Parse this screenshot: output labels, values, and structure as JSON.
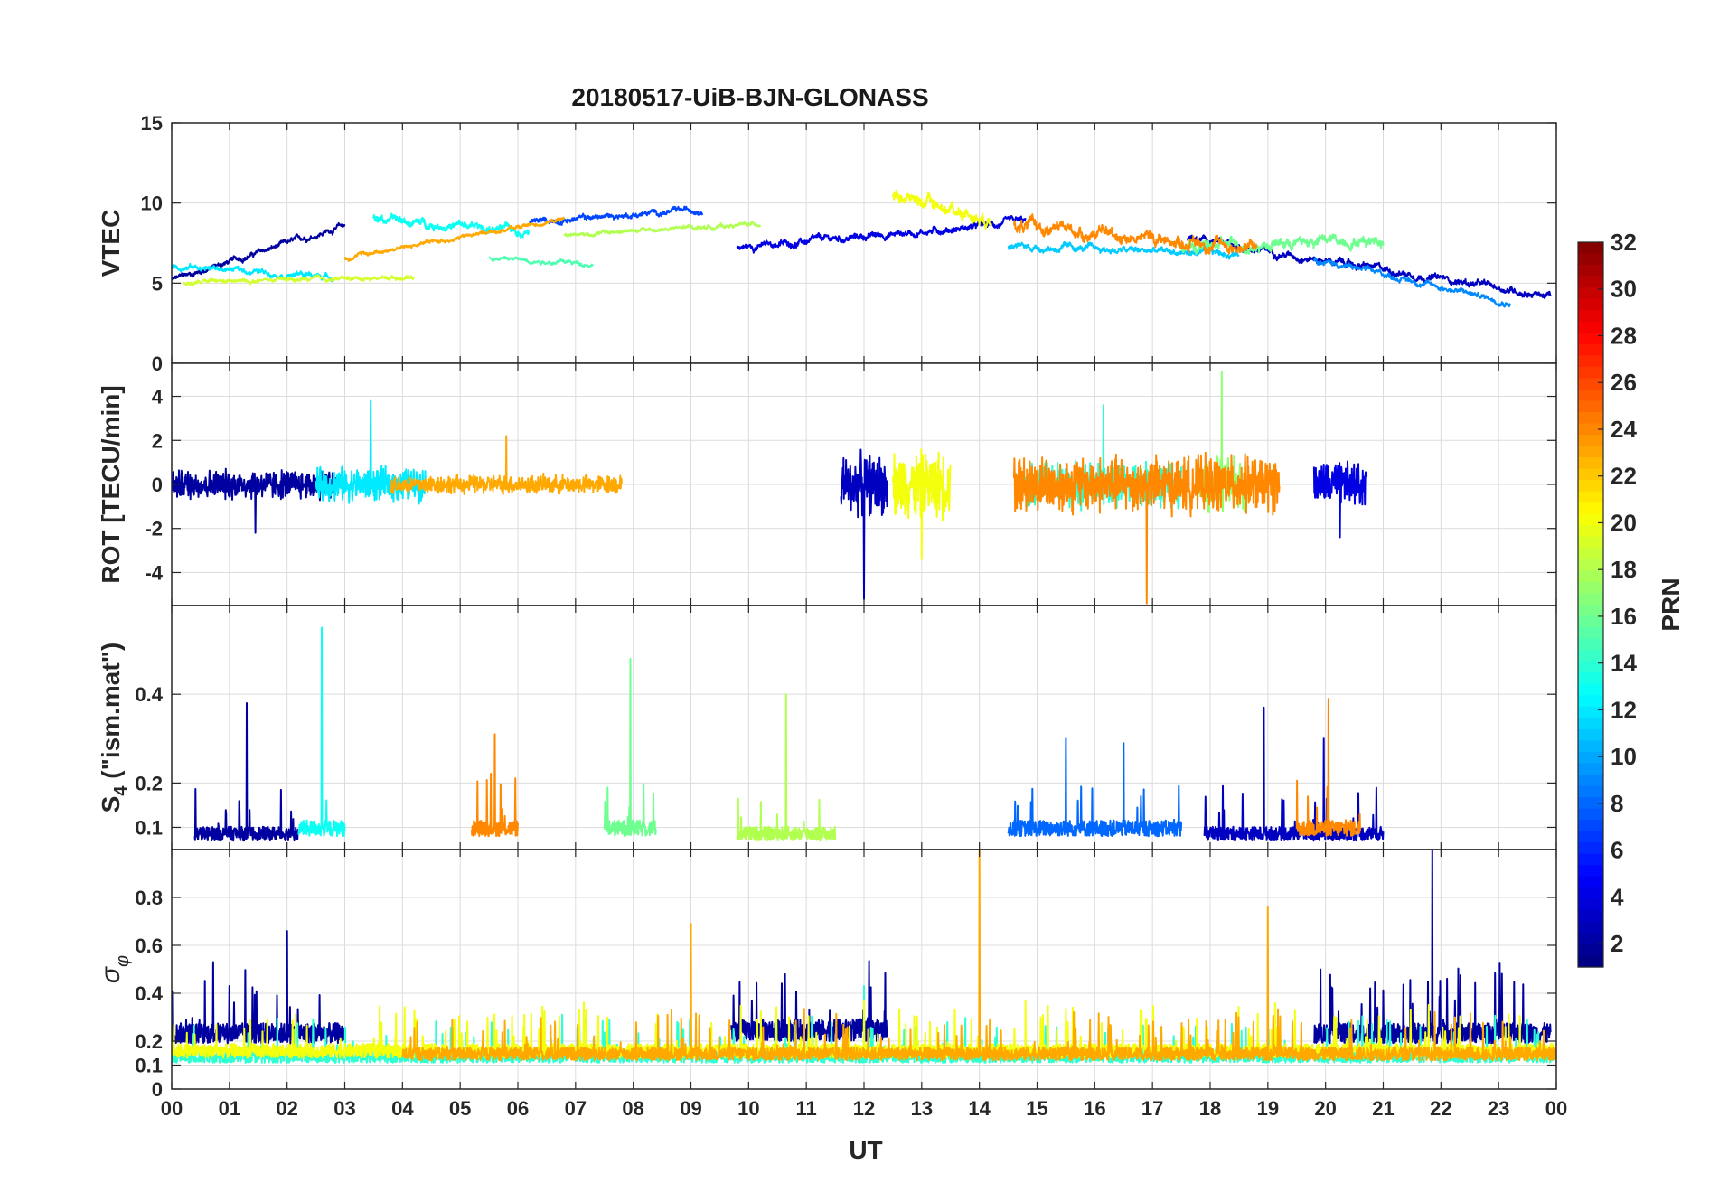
{
  "chart_data": {
    "type": "line",
    "title": "20180517-UiB-BJN-GLONASS",
    "xlabel": "UT",
    "x_ticks": [
      "00",
      "01",
      "02",
      "03",
      "04",
      "05",
      "06",
      "07",
      "08",
      "09",
      "10",
      "11",
      "12",
      "13",
      "14",
      "15",
      "16",
      "17",
      "18",
      "19",
      "20",
      "21",
      "22",
      "23",
      "00"
    ],
    "xlim": [
      0,
      24
    ],
    "grid": true,
    "panels": [
      {
        "name": "vtec",
        "ylabel": "VTEC",
        "ylim": [
          0,
          15
        ],
        "yticks": [
          0,
          5,
          10,
          15
        ],
        "ytick_labels": [
          "0",
          "5",
          "10",
          "15"
        ],
        "mode": "level",
        "series": [
          {
            "name": "PRN 2",
            "prn": 2,
            "hours": [
              0.0,
              3.0
            ],
            "values": [
              5.2,
              8.6
            ],
            "noise": 0.4
          },
          {
            "name": "PRN 4",
            "prn": 4,
            "hours": [
              9.8,
              14.8
            ],
            "values": [
              7.2,
              8.8
            ],
            "noise": 0.5
          },
          {
            "name": "PRN 3",
            "prn": 3,
            "hours": [
              17.6,
              23.9
            ],
            "values": [
              7.8,
              4.2
            ],
            "noise": 0.5
          },
          {
            "name": "PRN 7",
            "prn": 7,
            "hours": [
              6.2,
              9.2
            ],
            "values": [
              8.8,
              9.6
            ],
            "noise": 0.4
          },
          {
            "name": "PRN 9",
            "prn": 9,
            "hours": [
              19.8,
              23.2
            ],
            "values": [
              6.5,
              3.8
            ],
            "noise": 0.4
          },
          {
            "name": "PRN 11",
            "prn": 11,
            "hours": [
              14.5,
              18.5
            ],
            "values": [
              7.3,
              6.8
            ],
            "noise": 0.5
          },
          {
            "name": "PRN 12",
            "prn": 12,
            "hours": [
              0.0,
              2.8
            ],
            "values": [
              6.1,
              5.4
            ],
            "noise": 0.4
          },
          {
            "name": "PRN 13",
            "prn": 13,
            "hours": [
              3.5,
              6.2
            ],
            "values": [
              9.0,
              8.2
            ],
            "noise": 0.6
          },
          {
            "name": "PRN 15",
            "prn": 15,
            "hours": [
              5.5,
              7.3
            ],
            "values": [
              6.6,
              6.2
            ],
            "noise": 0.3
          },
          {
            "name": "PRN 16",
            "prn": 16,
            "hours": [
              17.5,
              21.0
            ],
            "values": [
              7.2,
              7.8
            ],
            "noise": 0.8
          },
          {
            "name": "PRN 18",
            "prn": 18,
            "hours": [
              6.8,
              10.2
            ],
            "values": [
              8.0,
              8.7
            ],
            "noise": 0.3
          },
          {
            "name": "PRN 19",
            "prn": 19,
            "hours": [
              0.2,
              4.2
            ],
            "values": [
              5.0,
              5.4
            ],
            "noise": 0.3
          },
          {
            "name": "PRN 20",
            "prn": 20,
            "hours": [
              12.5,
              14.2
            ],
            "values": [
              10.6,
              9.0
            ],
            "noise": 0.9
          },
          {
            "name": "PRN 23",
            "prn": 23,
            "hours": [
              3.0,
              6.8
            ],
            "values": [
              6.6,
              9.0
            ],
            "noise": 0.3
          },
          {
            "name": "PRN 24",
            "prn": 24,
            "hours": [
              14.6,
              18.8
            ],
            "values": [
              8.6,
              7.2
            ],
            "noise": 0.9
          }
        ]
      },
      {
        "name": "rot",
        "ylabel": "ROT [TECU/min]",
        "ylim": [
          -5.5,
          5.5
        ],
        "yticks": [
          -4,
          -2,
          0,
          2,
          4
        ],
        "ytick_labels": [
          "-4",
          "-2",
          "0",
          "2",
          "4"
        ],
        "mode": "noise",
        "series": [
          {
            "name": "PRN 2",
            "prn": 2,
            "hours": [
              0.0,
              2.9
            ],
            "amp": 0.8,
            "peak": -2.2
          },
          {
            "name": "PRN 3",
            "prn": 3,
            "hours": [
              11.6,
              12.4
            ],
            "amp": 1.6,
            "peak": -5.2
          },
          {
            "name": "PRN 4",
            "prn": 4,
            "hours": [
              19.8,
              20.7
            ],
            "amp": 1.2,
            "peak": -2.4
          },
          {
            "name": "PRN 12",
            "prn": 12,
            "hours": [
              2.5,
              4.4
            ],
            "amp": 0.9,
            "peak": 3.8
          },
          {
            "name": "PRN 14",
            "prn": 14,
            "hours": [
              14.8,
              17.5
            ],
            "amp": 1.2,
            "peak": 3.6
          },
          {
            "name": "PRN 17",
            "prn": 17,
            "hours": [
              17.8,
              18.6
            ],
            "amp": 1.4,
            "peak": 5.1
          },
          {
            "name": "PRN 20",
            "prn": 20,
            "hours": [
              12.5,
              13.5
            ],
            "amp": 1.8,
            "peak": -3.4
          },
          {
            "name": "PRN 23",
            "prn": 23,
            "hours": [
              3.8,
              7.8
            ],
            "amp": 0.5,
            "peak": 2.2
          },
          {
            "name": "PRN 24",
            "prn": 24,
            "hours": [
              14.6,
              19.2
            ],
            "amp": 1.5,
            "peak": -5.4
          }
        ]
      },
      {
        "name": "s4",
        "ylabel": "S4 (\"ism.mat\")",
        "ylim": [
          0.05,
          0.6
        ],
        "yticks": [
          0.1,
          0.2,
          0.4
        ],
        "ytick_labels": [
          "0.1",
          "0.2",
          "0.4"
        ],
        "mode": "baseline",
        "series": [
          {
            "name": "PRN 2",
            "prn": 2,
            "hours": [
              0.4,
              2.2
            ],
            "base": 0.07,
            "peaks": [
              0.38
            ]
          },
          {
            "name": "PRN 3",
            "prn": 3,
            "hours": [
              17.9,
              21.0
            ],
            "base": 0.07,
            "peaks": [
              0.37,
              0.3
            ]
          },
          {
            "name": "PRN 8",
            "prn": 8,
            "hours": [
              14.5,
              17.5
            ],
            "base": 0.08,
            "peaks": [
              0.3,
              0.29
            ]
          },
          {
            "name": "PRN 13",
            "prn": 13,
            "hours": [
              2.2,
              3.0
            ],
            "base": 0.08,
            "peaks": [
              0.55
            ]
          },
          {
            "name": "PRN 16",
            "prn": 16,
            "hours": [
              7.5,
              8.4
            ],
            "base": 0.08,
            "peaks": [
              0.48
            ]
          },
          {
            "name": "PRN 18",
            "prn": 18,
            "hours": [
              9.8,
              11.5
            ],
            "base": 0.07,
            "peaks": [
              0.4
            ]
          },
          {
            "name": "PRN 24",
            "prn": 24,
            "hours": [
              5.2,
              6.0
            ],
            "base": 0.08,
            "peaks": [
              0.31
            ]
          },
          {
            "name": "PRN 24",
            "prn": 24,
            "hours": [
              19.5,
              20.6
            ],
            "base": 0.08,
            "peaks": [
              0.39
            ]
          }
        ]
      },
      {
        "name": "sigma_phi",
        "ylabel": "σφ",
        "ylim": [
          0,
          1.0
        ],
        "yticks": [
          0,
          0.1,
          0.2,
          0.4,
          0.6,
          0.8
        ],
        "ytick_labels": [
          "0",
          "0.1",
          "0.2",
          "0.4",
          "0.6",
          "0.8"
        ],
        "mode": "baseline",
        "series": [
          {
            "name": "PRN 2",
            "prn": 2,
            "hours": [
              0.0,
              3.0
            ],
            "base": 0.19,
            "peaks": [
              0.43,
              0.66
            ]
          },
          {
            "name": "PRN 2",
            "prn": 2,
            "hours": [
              9.7,
              12.4
            ],
            "base": 0.2,
            "peaks": [
              0.33
            ]
          },
          {
            "name": "PRN 2",
            "prn": 2,
            "hours": [
              19.8,
              23.9
            ],
            "base": 0.19,
            "peaks": [
              1.0
            ]
          },
          {
            "name": "PRN 14",
            "prn": 14,
            "hours": [
              0.0,
              24.0
            ],
            "base": 0.11,
            "peaks": [
              0.43
            ]
          },
          {
            "name": "PRN 20",
            "prn": 20,
            "hours": [
              0.0,
              24.0
            ],
            "base": 0.13,
            "peaks": [
              0.37
            ]
          },
          {
            "name": "PRN 23",
            "prn": 23,
            "hours": [
              4.0,
              24.0
            ],
            "base": 0.12,
            "peaks": [
              0.69,
              1.0,
              0.76
            ]
          }
        ]
      }
    ],
    "colorbar": {
      "label": "PRN",
      "range": [
        1,
        32
      ],
      "ticks": [
        "2",
        "4",
        "6",
        "8",
        "10",
        "12",
        "14",
        "16",
        "18",
        "20",
        "22",
        "24",
        "26",
        "28",
        "30",
        "32"
      ],
      "colormap": "jet"
    }
  }
}
